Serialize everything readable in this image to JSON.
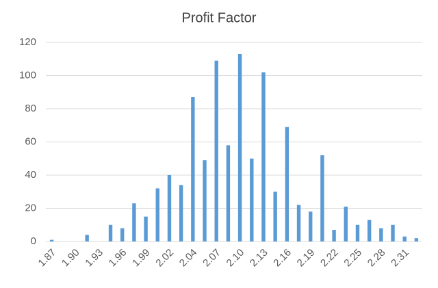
{
  "chart_data": {
    "type": "bar",
    "title": "Profit Factor",
    "categories": [
      "1.87",
      null,
      "1.90",
      null,
      "1.93",
      null,
      "1.96",
      null,
      "1.99",
      null,
      "2.02",
      null,
      "2.04",
      null,
      "2.07",
      null,
      "2.10",
      null,
      "2.13",
      null,
      "2.16",
      null,
      "2.19",
      null,
      "2.22",
      null,
      "2.25",
      null,
      "2.28",
      null,
      "2.31",
      null
    ],
    "values": [
      1,
      0,
      0,
      4,
      0,
      10,
      8,
      23,
      15,
      32,
      40,
      34,
      87,
      49,
      109,
      58,
      113,
      50,
      102,
      30,
      69,
      22,
      18,
      52,
      7,
      21,
      10,
      13,
      8,
      10,
      3,
      2
    ],
    "color": "#5b9bd5",
    "ylim": [
      0,
      120
    ],
    "yticks": [
      0,
      20,
      40,
      60,
      80,
      100,
      120
    ],
    "grid": true
  }
}
